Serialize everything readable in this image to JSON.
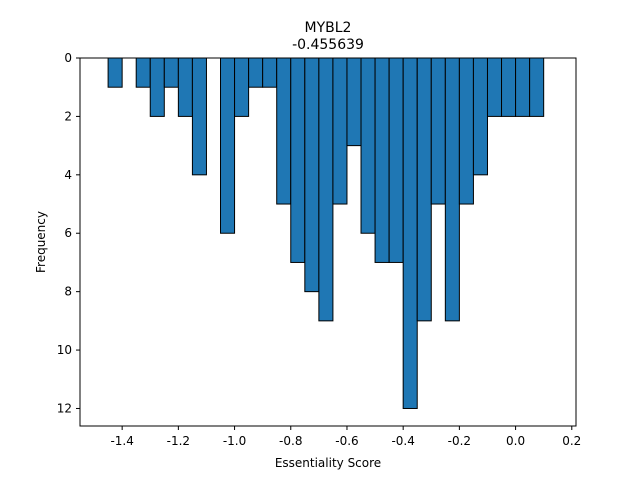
{
  "chart_data": {
    "type": "bar",
    "title": "MYBL2",
    "subtitle": "-0.455639",
    "xlabel": "Essentiality Score",
    "ylabel": "Frequency",
    "xlim": [
      -1.55,
      0.215
    ],
    "ylim": [
      0,
      12.6
    ],
    "y_inverted": true,
    "bar_color": "#1f77b4",
    "edge_color": "#000000",
    "bin_width": 0.05,
    "xticks": [
      -1.4,
      -1.2,
      -1.0,
      -0.8,
      -0.6,
      -0.4,
      -0.2,
      0.0,
      0.2
    ],
    "xtick_labels": [
      "-1.4",
      "-1.2",
      "-1.0",
      "-0.8",
      "-0.6",
      "-0.4",
      "-0.2",
      "0.0",
      "0.2"
    ],
    "yticks": [
      0,
      2,
      4,
      6,
      8,
      10,
      12
    ],
    "ytick_labels": [
      "0",
      "2",
      "4",
      "6",
      "8",
      "10",
      "12"
    ],
    "bins": [
      {
        "x": -1.45,
        "count": 1
      },
      {
        "x": -1.35,
        "count": 1
      },
      {
        "x": -1.3,
        "count": 2
      },
      {
        "x": -1.25,
        "count": 1
      },
      {
        "x": -1.2,
        "count": 2
      },
      {
        "x": -1.15,
        "count": 4
      },
      {
        "x": -1.05,
        "count": 6
      },
      {
        "x": -1.0,
        "count": 2
      },
      {
        "x": -0.95,
        "count": 1
      },
      {
        "x": -0.9,
        "count": 1
      },
      {
        "x": -0.85,
        "count": 5
      },
      {
        "x": -0.8,
        "count": 7
      },
      {
        "x": -0.75,
        "count": 8
      },
      {
        "x": -0.7,
        "count": 9
      },
      {
        "x": -0.65,
        "count": 5
      },
      {
        "x": -0.6,
        "count": 3
      },
      {
        "x": -0.55,
        "count": 6
      },
      {
        "x": -0.5,
        "count": 7
      },
      {
        "x": -0.45,
        "count": 7
      },
      {
        "x": -0.4,
        "count": 12
      },
      {
        "x": -0.35,
        "count": 9
      },
      {
        "x": -0.3,
        "count": 5
      },
      {
        "x": -0.25,
        "count": 9
      },
      {
        "x": -0.2,
        "count": 5
      },
      {
        "x": -0.15,
        "count": 4
      },
      {
        "x": -0.1,
        "count": 2
      },
      {
        "x": -0.05,
        "count": 2
      },
      {
        "x": 0.0,
        "count": 2
      },
      {
        "x": 0.05,
        "count": 2
      }
    ]
  }
}
